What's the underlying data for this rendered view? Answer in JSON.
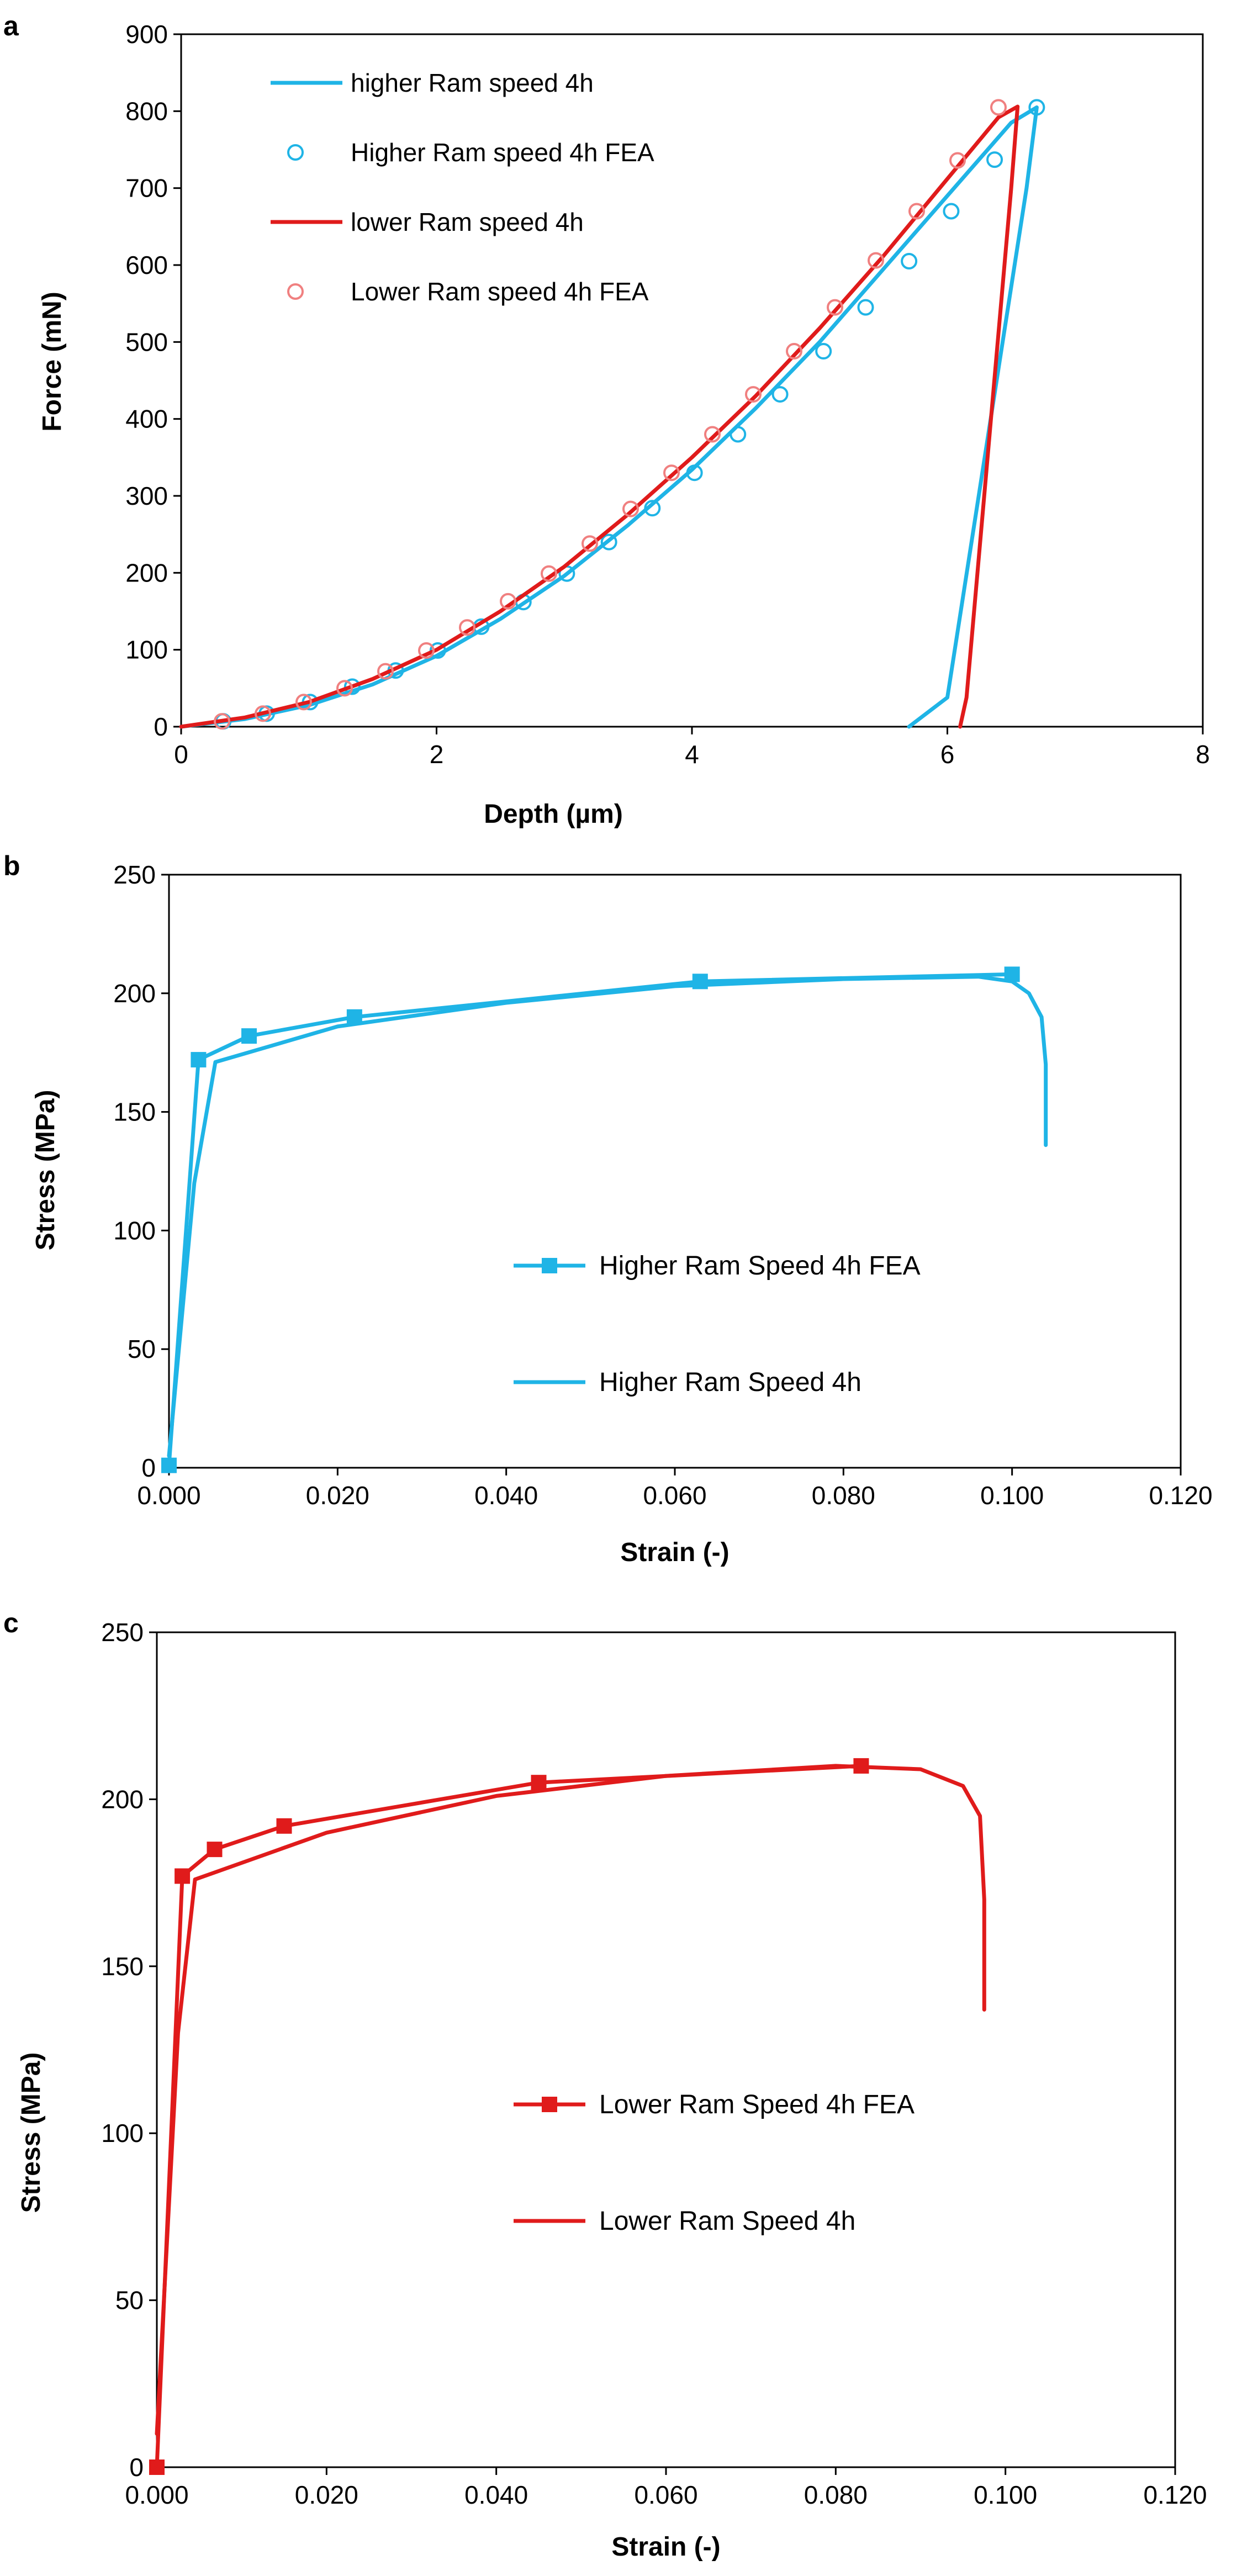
{
  "chart_data": [
    {
      "panel_label": "a",
      "type": "line",
      "title": "",
      "xlabel": "Depth (µm)",
      "ylabel": "Force (mN)",
      "xlim": [
        0,
        8
      ],
      "ylim": [
        0,
        900
      ],
      "xticks": [
        0,
        2,
        4,
        6,
        8
      ],
      "yticks": [
        0,
        100,
        200,
        300,
        400,
        500,
        600,
        700,
        800,
        900
      ],
      "xtick_labels": [
        "0",
        "2",
        "4",
        "6",
        "8"
      ],
      "ytick_labels": [
        "0",
        "100",
        "200",
        "300",
        "400",
        "500",
        "600",
        "700",
        "800",
        "900"
      ],
      "grid": false,
      "legend_position": "top-left",
      "series": [
        {
          "name": "higher Ram speed 4h",
          "kind": "line",
          "color": "#1fb4e6",
          "x": [
            0,
            0.5,
            1.0,
            1.5,
            2.0,
            2.5,
            3.0,
            3.5,
            4.0,
            4.5,
            5.0,
            5.5,
            6.0,
            6.5,
            6.7,
            6.62,
            6.0,
            5.7
          ],
          "y": [
            0,
            10,
            28,
            55,
            92,
            140,
            196,
            262,
            334,
            414,
            500,
            595,
            690,
            785,
            805,
            700,
            38,
            0
          ]
        },
        {
          "name": "Higher Ram speed 4h FEA",
          "kind": "scatter",
          "marker": "open-circle",
          "color": "#1fb4e6",
          "x": [
            0.33,
            0.67,
            1.01,
            1.34,
            1.68,
            2.01,
            2.35,
            2.68,
            3.02,
            3.35,
            3.69,
            4.02,
            4.36,
            4.69,
            5.03,
            5.36,
            5.7,
            6.03,
            6.37,
            6.7
          ],
          "y": [
            7,
            17,
            32,
            52,
            73,
            99,
            130,
            162,
            199,
            240,
            284,
            330,
            380,
            432,
            488,
            545,
            605,
            670,
            737,
            805
          ]
        },
        {
          "name": "lower Ram speed 4h",
          "kind": "line",
          "color": "#e01b1b",
          "x": [
            0,
            0.5,
            1.0,
            1.5,
            2.0,
            2.5,
            3.0,
            3.5,
            4.0,
            4.5,
            5.0,
            5.5,
            6.0,
            6.4,
            6.55,
            6.5,
            6.15,
            6.1
          ],
          "y": [
            0,
            12,
            32,
            62,
            100,
            150,
            208,
            276,
            350,
            430,
            518,
            612,
            712,
            792,
            806,
            700,
            38,
            0
          ]
        },
        {
          "name": "Lower Ram speed 4h FEA",
          "kind": "scatter",
          "marker": "open-circle",
          "color": "#f08080",
          "x": [
            0.32,
            0.64,
            0.96,
            1.28,
            1.6,
            1.92,
            2.24,
            2.56,
            2.88,
            3.2,
            3.52,
            3.84,
            4.16,
            4.48,
            4.8,
            5.12,
            5.44,
            5.76,
            6.08,
            6.4
          ],
          "y": [
            7,
            17,
            32,
            50,
            72,
            99,
            129,
            163,
            199,
            238,
            283,
            330,
            380,
            432,
            488,
            545,
            606,
            670,
            736,
            805
          ]
        }
      ]
    },
    {
      "panel_label": "b",
      "type": "line",
      "title": "",
      "xlabel": "Strain (-)",
      "ylabel": "Stress (MPa)",
      "xlim": [
        0,
        0.12
      ],
      "ylim": [
        0,
        250
      ],
      "xticks": [
        0,
        0.02,
        0.04,
        0.06,
        0.08,
        0.1,
        0.12
      ],
      "yticks": [
        0,
        50,
        100,
        150,
        200,
        250
      ],
      "xtick_labels": [
        "0.000",
        "0.020",
        "0.040",
        "0.060",
        "0.080",
        "0.100",
        "0.120"
      ],
      "ytick_labels": [
        "0",
        "50",
        "100",
        "150",
        "200",
        "250"
      ],
      "grid": false,
      "legend_position": "center-right",
      "series": [
        {
          "name": "Higher Ram Speed 4h FEA",
          "kind": "line-with-markers",
          "marker": "filled-square",
          "color": "#1fb4e6",
          "x": [
            0.0,
            0.0035,
            0.0095,
            0.022,
            0.063,
            0.1
          ],
          "y": [
            1,
            172,
            182,
            190,
            205,
            208
          ]
        },
        {
          "name": "Higher Ram Speed 4h",
          "kind": "line",
          "color": "#1fb4e6",
          "x": [
            0.0,
            0.003,
            0.0055,
            0.02,
            0.04,
            0.06,
            0.08,
            0.096,
            0.1,
            0.102,
            0.1035,
            0.104,
            0.104
          ],
          "y": [
            5,
            120,
            171,
            186,
            196,
            203,
            206,
            207,
            205,
            200,
            190,
            170,
            136
          ]
        }
      ]
    },
    {
      "panel_label": "c",
      "type": "line",
      "title": "",
      "xlabel": "Strain (-)",
      "ylabel": "Stress (MPa)",
      "xlim": [
        0,
        0.12
      ],
      "ylim": [
        0,
        250
      ],
      "xticks": [
        0,
        0.02,
        0.04,
        0.06,
        0.08,
        0.1,
        0.12
      ],
      "yticks": [
        0,
        50,
        100,
        150,
        200,
        250
      ],
      "xtick_labels": [
        "0.000",
        "0.020",
        "0.040",
        "0.060",
        "0.080",
        "0.100",
        "0.120"
      ],
      "ytick_labels": [
        "0",
        "50",
        "100",
        "150",
        "200",
        "250"
      ],
      "grid": false,
      "legend_position": "center-right",
      "series": [
        {
          "name": "Lower Ram Speed 4h FEA",
          "kind": "line-with-markers",
          "marker": "filled-square",
          "color": "#e01b1b",
          "x": [
            0.0,
            0.003,
            0.0068,
            0.015,
            0.045,
            0.083
          ],
          "y": [
            0,
            177,
            185,
            192,
            205,
            210
          ]
        },
        {
          "name": "Lower Ram Speed 4h",
          "kind": "line",
          "color": "#e01b1b",
          "x": [
            0.0,
            0.0025,
            0.0045,
            0.02,
            0.04,
            0.06,
            0.08,
            0.09,
            0.095,
            0.097,
            0.0975,
            0.0975
          ],
          "y": [
            10,
            130,
            176,
            190,
            201,
            207,
            210,
            209,
            204,
            195,
            170,
            137
          ]
        }
      ]
    }
  ]
}
